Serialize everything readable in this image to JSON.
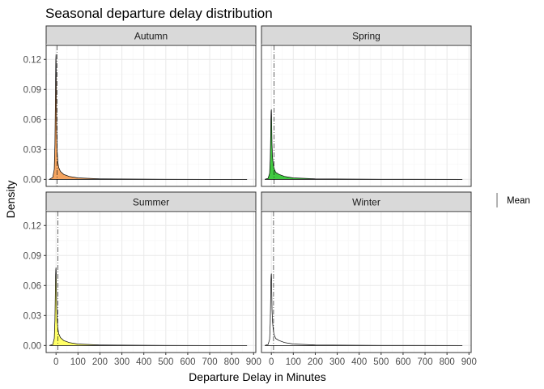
{
  "chart_data": {
    "type": "area",
    "title": "Seasonal departure delay distribution",
    "xlabel": "Departure Delay in Minutes",
    "ylabel": "Density",
    "xlim": [
      -45,
      910
    ],
    "ylim": [
      -0.007,
      0.134
    ],
    "x_ticks": [
      0,
      100,
      200,
      300,
      400,
      500,
      600,
      700,
      800,
      900
    ],
    "y_ticks": [
      0.0,
      0.03,
      0.06,
      0.09,
      0.12
    ],
    "y_tick_labels": [
      "0.00",
      "0.03",
      "0.06",
      "0.09",
      "0.12"
    ],
    "grid": true,
    "legend": {
      "position": "right",
      "entries": [
        {
          "label": "Mean",
          "style": "vertical line"
        }
      ]
    },
    "panels": [
      {
        "name": "Autumn",
        "fill": "#F4A460",
        "mean": 5,
        "density": {
          "x": [
            -30,
            -15,
            -8,
            -5,
            -3,
            -2,
            -1,
            0,
            1,
            2,
            3,
            5,
            8,
            12,
            20,
            35,
            60,
            100,
            200,
            500,
            870
          ],
          "y": [
            0,
            0.002,
            0.01,
            0.035,
            0.075,
            0.1,
            0.12,
            0.125,
            0.1,
            0.075,
            0.05,
            0.03,
            0.018,
            0.012,
            0.008,
            0.005,
            0.003,
            0.0015,
            0.0005,
            0.0001,
            0
          ]
        }
      },
      {
        "name": "Spring",
        "fill": "#40C940",
        "mean": 12,
        "density": {
          "x": [
            -30,
            -15,
            -8,
            -5,
            -3,
            -2,
            -1,
            0,
            1,
            2,
            3,
            5,
            8,
            12,
            20,
            35,
            60,
            100,
            200,
            500,
            870
          ],
          "y": [
            0,
            0.001,
            0.006,
            0.02,
            0.045,
            0.06,
            0.068,
            0.07,
            0.062,
            0.048,
            0.035,
            0.024,
            0.016,
            0.011,
            0.007,
            0.005,
            0.003,
            0.0015,
            0.0005,
            0.0001,
            0
          ]
        }
      },
      {
        "name": "Summer",
        "fill": "#FFFF66",
        "mean": 8,
        "density": {
          "x": [
            -30,
            -15,
            -8,
            -5,
            -3,
            -2,
            -1,
            0,
            1,
            2,
            3,
            5,
            8,
            12,
            20,
            35,
            60,
            100,
            200,
            500,
            870
          ],
          "y": [
            0,
            0.001,
            0.007,
            0.025,
            0.055,
            0.07,
            0.076,
            0.078,
            0.07,
            0.055,
            0.04,
            0.027,
            0.018,
            0.012,
            0.008,
            0.005,
            0.003,
            0.0015,
            0.0005,
            0.0001,
            0
          ]
        }
      },
      {
        "name": "Winter",
        "fill": "#FFFFFF",
        "mean": 10,
        "density": {
          "x": [
            -30,
            -15,
            -8,
            -5,
            -3,
            -2,
            -1,
            0,
            1,
            2,
            3,
            5,
            8,
            12,
            20,
            35,
            60,
            100,
            200,
            500,
            870
          ],
          "y": [
            0,
            0.001,
            0.006,
            0.022,
            0.05,
            0.064,
            0.07,
            0.072,
            0.064,
            0.05,
            0.036,
            0.025,
            0.017,
            0.011,
            0.007,
            0.005,
            0.003,
            0.0015,
            0.0005,
            0.0001,
            0
          ]
        }
      }
    ]
  },
  "colors": {
    "panel_border": "#333333",
    "strip_fill": "#D9D9D9",
    "grid_major": "#EBEBEB",
    "grid_minor": "#F5F5F5",
    "outline": "#000000"
  }
}
